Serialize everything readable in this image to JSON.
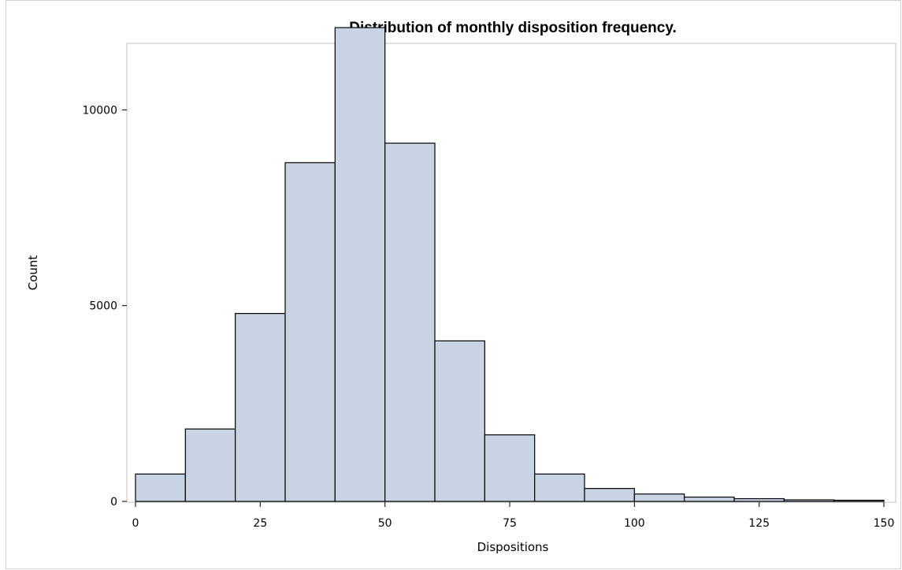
{
  "chart_data": {
    "type": "bar",
    "title": "Distribution of monthly disposition frequency.",
    "xlabel": "Dispositions",
    "ylabel": "Count",
    "xlim": [
      0,
      150
    ],
    "ylim": [
      0,
      12000
    ],
    "x_ticks": [
      "0",
      "25",
      "50",
      "75",
      "100",
      "125",
      "150"
    ],
    "y_ticks": [
      "0",
      "5000",
      "10000"
    ],
    "grid": false,
    "legend": "none",
    "bin_width": 10,
    "bins": [
      {
        "start": 0,
        "end": 10,
        "count": 700
      },
      {
        "start": 10,
        "end": 20,
        "count": 1850
      },
      {
        "start": 20,
        "end": 30,
        "count": 4800
      },
      {
        "start": 30,
        "end": 40,
        "count": 8650
      },
      {
        "start": 40,
        "end": 50,
        "count": 12100
      },
      {
        "start": 50,
        "end": 60,
        "count": 9150
      },
      {
        "start": 60,
        "end": 70,
        "count": 4100
      },
      {
        "start": 70,
        "end": 80,
        "count": 1700
      },
      {
        "start": 80,
        "end": 90,
        "count": 700
      },
      {
        "start": 90,
        "end": 100,
        "count": 330
      },
      {
        "start": 100,
        "end": 110,
        "count": 190
      },
      {
        "start": 110,
        "end": 120,
        "count": 110
      },
      {
        "start": 120,
        "end": 130,
        "count": 70
      },
      {
        "start": 130,
        "end": 140,
        "count": 40
      },
      {
        "start": 140,
        "end": 150,
        "count": 30
      }
    ],
    "colors": {
      "bar_fill": "#c8d4e4",
      "bar_stroke": "#000000",
      "plot_border": "#c0c0c0"
    }
  }
}
